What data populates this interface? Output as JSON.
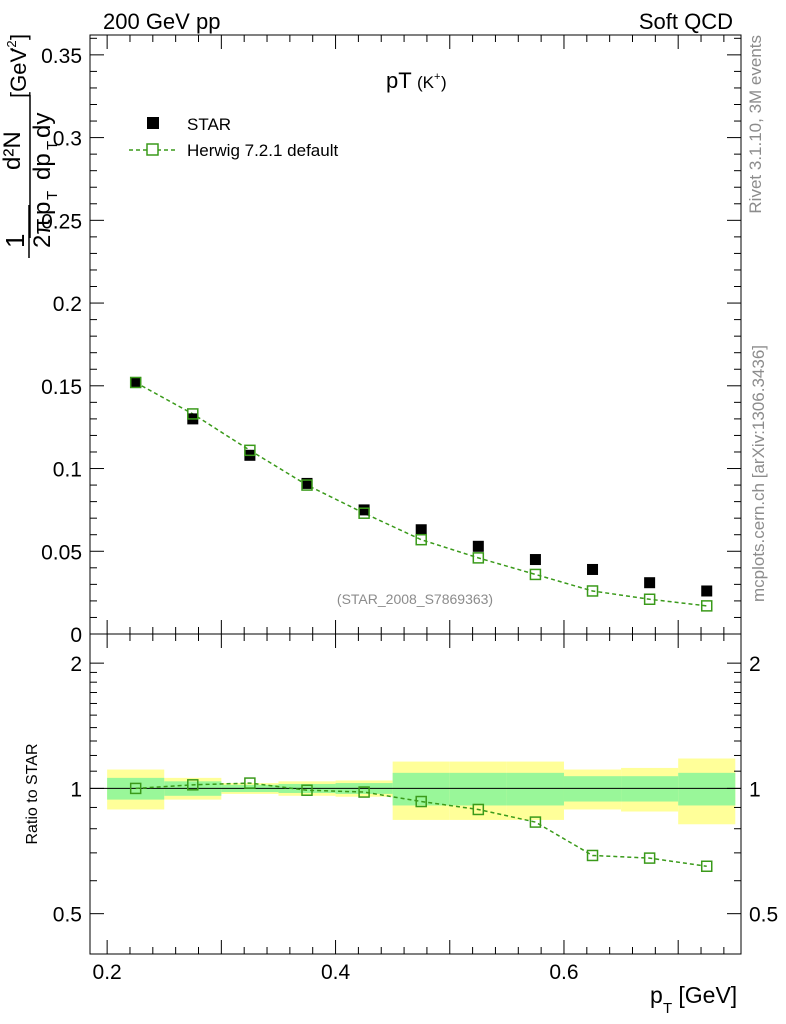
{
  "header": {
    "left": "200 GeV pp",
    "right": "Soft QCD"
  },
  "side_labels": {
    "rivet": "Rivet 3.1.10,  3M events",
    "mcplots": "mcplots.cern.ch [arXiv:1306.3436]"
  },
  "watermark": "(STAR_2008_S7869363)",
  "colors": {
    "data": "#000000",
    "mc": "#3a9a1a",
    "band_inner": "#99f799",
    "band_outer": "#ffff99"
  },
  "chart_data": [
    {
      "type": "scatter",
      "title_main": "pT",
      "title_sub": "(K",
      "title_sup": "+",
      "title_close": ")",
      "ylabel_parts": {
        "frac_one": "1",
        "frac_two_pi": "2π",
        "p": "p",
        "t": "T",
        "d2n": "d²N",
        "dp": "dp",
        "dpt_t": "T",
        "dy": "dy",
        "unit": "[GeV",
        "unit_exp": "-2",
        "unit_close": "]"
      },
      "ylim": [
        0,
        0.362
      ],
      "xlim": [
        0.185,
        0.755
      ],
      "y_ticks": [
        "0",
        "0.05",
        "0.1",
        "0.15",
        "0.2",
        "0.25",
        "0.3",
        "0.35"
      ],
      "y_tick_values": [
        0,
        0.05,
        0.1,
        0.15,
        0.2,
        0.25,
        0.3,
        0.35
      ],
      "legend_position": "top-left",
      "series": [
        {
          "name": "STAR",
          "marker": "filled-square",
          "x": [
            0.225,
            0.275,
            0.325,
            0.375,
            0.425,
            0.475,
            0.525,
            0.575,
            0.625,
            0.675,
            0.725
          ],
          "y": [
            0.152,
            0.13,
            0.108,
            0.091,
            0.075,
            0.063,
            0.053,
            0.045,
            0.039,
            0.031,
            0.026
          ]
        },
        {
          "name": "Herwig 7.2.1 default",
          "marker": "open-square-dashed",
          "x": [
            0.225,
            0.275,
            0.325,
            0.375,
            0.425,
            0.475,
            0.525,
            0.575,
            0.625,
            0.675,
            0.725
          ],
          "y": [
            0.152,
            0.133,
            0.111,
            0.09,
            0.073,
            0.057,
            0.046,
            0.036,
            0.026,
            0.021,
            0.017
          ]
        }
      ]
    },
    {
      "type": "line",
      "ylabel": "Ratio to STAR",
      "xlabel_main": "p",
      "xlabel_sub": "T",
      "xlabel_unit": " [GeV]",
      "x_ticks": [
        "0.2",
        "0.4",
        "0.6"
      ],
      "x_tick_values": [
        0.2,
        0.4,
        0.6
      ],
      "y_ticks": [
        "0.5",
        "1",
        "2"
      ],
      "y_tick_values": [
        0.5,
        1,
        2
      ],
      "y_scale": "log",
      "ylim": [
        0.4,
        2.35
      ],
      "xlim": [
        0.185,
        0.755
      ],
      "bands": {
        "x_edges": [
          0.2,
          0.25,
          0.3,
          0.35,
          0.4,
          0.45,
          0.5,
          0.55,
          0.6,
          0.65,
          0.7,
          0.75
        ],
        "inner_low": [
          0.94,
          0.96,
          0.98,
          0.975,
          0.97,
          0.91,
          0.91,
          0.91,
          0.93,
          0.93,
          0.91
        ],
        "inner_high": [
          1.06,
          1.04,
          1.02,
          1.025,
          1.03,
          1.09,
          1.09,
          1.09,
          1.07,
          1.07,
          1.09
        ],
        "outer_low": [
          0.89,
          0.94,
          0.97,
          0.96,
          0.955,
          0.84,
          0.84,
          0.84,
          0.89,
          0.88,
          0.82
        ],
        "outer_high": [
          1.11,
          1.06,
          1.03,
          1.04,
          1.045,
          1.16,
          1.16,
          1.16,
          1.11,
          1.12,
          1.18
        ]
      },
      "series": [
        {
          "name": "Herwig 7.2.1 default",
          "x": [
            0.225,
            0.275,
            0.325,
            0.375,
            0.425,
            0.475,
            0.525,
            0.575,
            0.625,
            0.675,
            0.725
          ],
          "y": [
            1.0,
            1.02,
            1.03,
            0.99,
            0.98,
            0.93,
            0.89,
            0.83,
            0.69,
            0.68,
            0.65
          ]
        }
      ]
    }
  ]
}
